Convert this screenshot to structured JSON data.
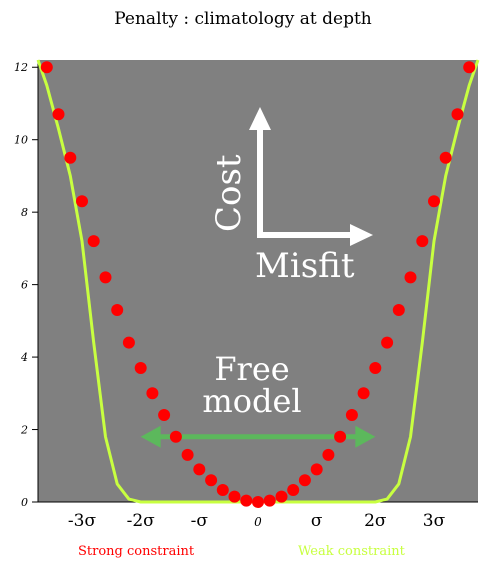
{
  "chart_data": {
    "type": "line",
    "title": "Penalty : climatology at depth",
    "xlabel": "",
    "ylabel": "",
    "xlim": [
      -3.75,
      3.75
    ],
    "ylim": [
      0,
      12.2
    ],
    "grid": false,
    "background": "#808080",
    "y_ticks": [
      {
        "value": 0,
        "label": "0"
      },
      {
        "value": 2,
        "label": "2"
      },
      {
        "value": 4,
        "label": "4"
      },
      {
        "value": 6,
        "label": "6"
      },
      {
        "value": 8,
        "label": "8"
      },
      {
        "value": 10,
        "label": "10"
      },
      {
        "value": 12,
        "label": "12"
      }
    ],
    "x_ticks": [
      {
        "value": -3,
        "label": "-3σ"
      },
      {
        "value": -2,
        "label": "-2σ"
      },
      {
        "value": -1,
        "label": "-σ"
      },
      {
        "value": 0,
        "label": "0"
      },
      {
        "value": 1,
        "label": "σ"
      },
      {
        "value": 2,
        "label": "2σ"
      },
      {
        "value": 3,
        "label": "3σ"
      }
    ],
    "series": [
      {
        "name": "Strong constraint",
        "color": "#ff0000",
        "style": "dots",
        "x": [
          -3.6,
          -3.4,
          -3.2,
          -3.0,
          -2.8,
          -2.6,
          -2.4,
          -2.2,
          -2.0,
          -1.8,
          -1.6,
          -1.4,
          -1.2,
          -1.0,
          -0.8,
          -0.6,
          -0.4,
          -0.2,
          0.0,
          0.2,
          0.4,
          0.6,
          0.8,
          1.0,
          1.2,
          1.4,
          1.6,
          1.8,
          2.0,
          2.2,
          2.4,
          2.6,
          2.8,
          3.0,
          3.2,
          3.4,
          3.6
        ],
        "y": [
          12.0,
          10.7,
          9.5,
          8.3,
          7.2,
          6.2,
          5.3,
          4.4,
          3.7,
          3.0,
          2.4,
          1.8,
          1.3,
          0.9,
          0.6,
          0.33,
          0.15,
          0.04,
          0.0,
          0.04,
          0.15,
          0.33,
          0.6,
          0.9,
          1.3,
          1.8,
          2.4,
          3.0,
          3.7,
          4.4,
          5.3,
          6.2,
          7.2,
          8.3,
          9.5,
          10.7,
          12.0
        ]
      },
      {
        "name": "Weak constraint",
        "color": "#c8ff40",
        "style": "line",
        "x": [
          -3.75,
          -3.6,
          -3.4,
          -3.2,
          -3.0,
          -2.8,
          -2.6,
          -2.4,
          -2.2,
          -2.0,
          -1.5,
          -1.0,
          0.0,
          1.0,
          1.5,
          2.0,
          2.2,
          2.4,
          2.6,
          2.8,
          3.0,
          3.2,
          3.4,
          3.6,
          3.75
        ],
        "y": [
          12.2,
          11.5,
          10.3,
          9.0,
          7.2,
          4.4,
          1.8,
          0.5,
          0.08,
          0.0,
          0.0,
          0.0,
          0.0,
          0.0,
          0.0,
          0.0,
          0.08,
          0.5,
          1.8,
          4.4,
          7.2,
          9.0,
          10.3,
          11.5,
          12.2
        ]
      }
    ],
    "annotations": {
      "cost_label": "Cost",
      "misfit_label": "Misfit",
      "free_model_line1": "Free",
      "free_model_line2": "model",
      "arrow_color": "#ffffff",
      "free_arrow_color": "#5cb85c",
      "free_arrow_range": [
        -2.0,
        2.0
      ],
      "free_arrow_y": 1.8
    }
  }
}
